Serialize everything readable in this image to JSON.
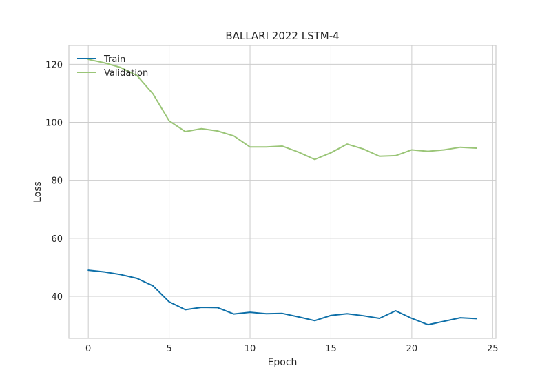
{
  "chart_data": {
    "type": "line",
    "title": "BALLARI 2022 LSTM-4",
    "xlabel": "Epoch",
    "ylabel": "Loss",
    "xlim": [
      -1.2,
      25.2
    ],
    "ylim": [
      25.5,
      126.5
    ],
    "xticks": [
      0,
      5,
      10,
      15,
      20,
      25
    ],
    "yticks": [
      40,
      60,
      80,
      100,
      120
    ],
    "grid": true,
    "legend_position": "top-left",
    "x": [
      0,
      1,
      2,
      3,
      4,
      5,
      6,
      7,
      8,
      9,
      10,
      11,
      12,
      13,
      14,
      15,
      16,
      17,
      18,
      19,
      20,
      21,
      22,
      23,
      24
    ],
    "series": [
      {
        "name": "Train",
        "color": "#0d6fa8",
        "values": [
          49.0,
          48.4,
          47.5,
          46.2,
          43.6,
          38.1,
          35.4,
          36.2,
          36.1,
          33.9,
          34.5,
          34.0,
          34.1,
          32.9,
          31.6,
          33.4,
          34.0,
          33.3,
          32.4,
          35.0,
          32.4,
          30.2,
          31.4,
          32.6,
          32.3
        ]
      },
      {
        "name": "Validation",
        "color": "#9ac577",
        "values": [
          121.7,
          120.5,
          118.9,
          116.2,
          109.8,
          100.5,
          96.8,
          97.8,
          97.0,
          95.3,
          91.5,
          91.5,
          91.8,
          89.7,
          87.2,
          89.5,
          92.5,
          90.8,
          88.3,
          88.5,
          90.5,
          90.0,
          90.5,
          91.4,
          91.1
        ]
      }
    ]
  }
}
